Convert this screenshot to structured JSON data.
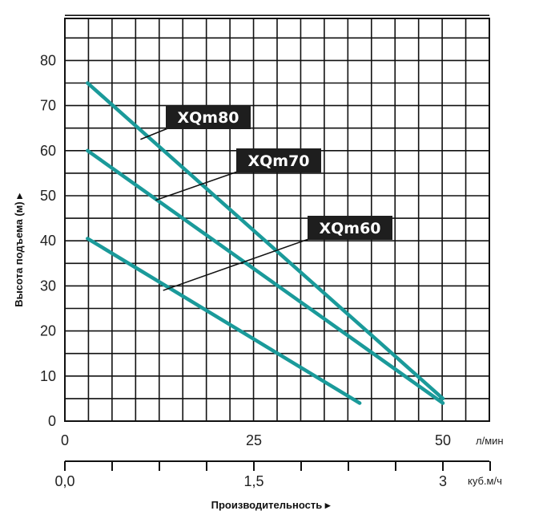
{
  "chart_data": {
    "type": "line",
    "ylabel": "Высота подъема (м) ▸",
    "xlabel": "Производительность ▸",
    "x_primary": {
      "unit": "л/мин",
      "range": [
        0,
        50
      ],
      "ticks": [
        {
          "value": 0,
          "label": "0"
        },
        {
          "value": 25,
          "label": "25"
        },
        {
          "value": 50,
          "label": "50"
        }
      ]
    },
    "x_secondary": {
      "unit": "куб.м/ч",
      "range": [
        0,
        3
      ],
      "ticks": [
        {
          "value": 0,
          "label": "0,0"
        },
        {
          "value": 1.5,
          "label": "1,5"
        },
        {
          "value": 3,
          "label": "3"
        }
      ]
    },
    "y": {
      "range": [
        0,
        90
      ],
      "ticks": [
        0,
        10,
        20,
        30,
        40,
        50,
        60,
        70,
        80
      ]
    },
    "grid": true,
    "line_color": "#1a9a9a",
    "series": [
      {
        "name": "XQm80",
        "points": [
          [
            3,
            75
          ],
          [
            50,
            5
          ]
        ]
      },
      {
        "name": "XQm70",
        "points": [
          [
            3,
            60
          ],
          [
            50,
            4
          ]
        ]
      },
      {
        "name": "XQm60",
        "points": [
          [
            3,
            40.5
          ],
          [
            39,
            4
          ]
        ]
      }
    ],
    "callouts": [
      {
        "series": "XQm80",
        "label": "XQm80",
        "at": [
          10,
          62.5
        ]
      },
      {
        "series": "XQm70",
        "label": "XQm70",
        "at": [
          12,
          49
        ]
      },
      {
        "series": "XQm60",
        "label": "XQm60",
        "at": [
          13,
          29
        ]
      }
    ]
  }
}
